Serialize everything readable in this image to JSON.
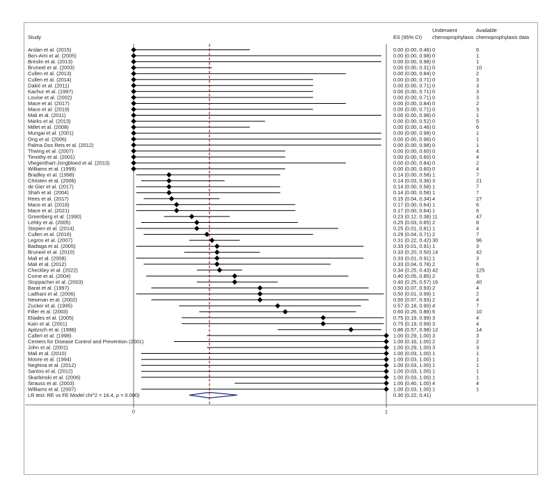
{
  "chart_data": {
    "type": "forest",
    "headers": {
      "study": "Study",
      "es": "ES (95% CI)",
      "underwent": "Underwent chemoprophylaxis",
      "underwent_lines": [
        "Underwent",
        "chemoprophylaxis"
      ],
      "available": "Available chemoprophylaxis data",
      "available_lines": [
        "Available",
        "chemoprophylaxis data"
      ]
    },
    "xlim": [
      0,
      1
    ],
    "x_ticks": [
      "0",
      "1"
    ],
    "pooled_line_x": 0.3,
    "colors": {
      "marker": "#000000",
      "pooled_diamond": "#1f2a80",
      "reference_line": "#8b0000"
    },
    "studies": [
      {
        "study": "Arslan et al. (2015)",
        "es": 0.0,
        "lo": 0.0,
        "hi": 0.46,
        "ci_text": "0.00 (0.00, 0.46)",
        "underwent": "0",
        "available": "6"
      },
      {
        "study": "Ben-Ami et al. (2005)",
        "es": 0.0,
        "lo": 0.0,
        "hi": 0.98,
        "ci_text": "0.00 (0.00, 0.98)",
        "underwent": "0",
        "available": "1"
      },
      {
        "study": "Breslin et al. (2013)",
        "es": 0.0,
        "lo": 0.0,
        "hi": 0.98,
        "ci_text": "0.00 (0.00, 0.98)",
        "underwent": "0",
        "available": "1"
      },
      {
        "study": "Bruneel et al. (2003)",
        "es": 0.0,
        "lo": 0.0,
        "hi": 0.31,
        "ci_text": "0.00 (0.00, 0.31)",
        "underwent": "0",
        "available": "10"
      },
      {
        "study": "Cullen et al. (2013)",
        "es": 0.0,
        "lo": 0.0,
        "hi": 0.84,
        "ci_text": "0.00 (0.00, 0.84)",
        "underwent": "0",
        "available": "2"
      },
      {
        "study": "Cullen et al. (2014)",
        "es": 0.0,
        "lo": 0.0,
        "hi": 0.71,
        "ci_text": "0.00 (0.00, 0.71)",
        "underwent": "0",
        "available": "3"
      },
      {
        "study": "Dakić et al. (2011)",
        "es": 0.0,
        "lo": 0.0,
        "hi": 0.71,
        "ci_text": "0.00 (0.00, 0.71)",
        "underwent": "0",
        "available": "3"
      },
      {
        "study": "Kachur et al. (1997)",
        "es": 0.0,
        "lo": 0.0,
        "hi": 0.71,
        "ci_text": "0.00 (0.00, 0.71)",
        "underwent": "0",
        "available": "3"
      },
      {
        "study": "Louise et al. (2002)",
        "es": 0.0,
        "lo": 0.0,
        "hi": 0.71,
        "ci_text": "0.00 (0.00, 0.71)",
        "underwent": "0",
        "available": "3"
      },
      {
        "study": "Mace et al. (2017)",
        "es": 0.0,
        "lo": 0.0,
        "hi": 0.84,
        "ci_text": "0.00 (0.00, 0.84)",
        "underwent": "0",
        "available": "2"
      },
      {
        "study": "Mace et al. (2019)",
        "es": 0.0,
        "lo": 0.0,
        "hi": 0.71,
        "ci_text": "0.00 (0.00, 0.71)",
        "underwent": "0",
        "available": "3"
      },
      {
        "study": "Mali et al. (2011)",
        "es": 0.0,
        "lo": 0.0,
        "hi": 0.98,
        "ci_text": "0.00 (0.00, 0.98)",
        "underwent": "0",
        "available": "1"
      },
      {
        "study": "Marks et al. (2013)",
        "es": 0.0,
        "lo": 0.0,
        "hi": 0.52,
        "ci_text": "0.00 (0.00, 0.52)",
        "underwent": "0",
        "available": "5"
      },
      {
        "study": "Millet et al. (2008)",
        "es": 0.0,
        "lo": 0.0,
        "hi": 0.46,
        "ci_text": "0.00 (0.00, 0.46)",
        "underwent": "0",
        "available": "6"
      },
      {
        "study": "Mungai et al. (2001)",
        "es": 0.0,
        "lo": 0.0,
        "hi": 0.98,
        "ci_text": "0.00 (0.00, 0.98)",
        "underwent": "0",
        "available": "1"
      },
      {
        "study": "Ong et al. (2006)",
        "es": 0.0,
        "lo": 0.0,
        "hi": 0.98,
        "ci_text": "0.00 (0.00, 0.98)",
        "underwent": "0",
        "available": "1"
      },
      {
        "study": "Palma Dos Reis et al. (2012)",
        "es": 0.0,
        "lo": 0.0,
        "hi": 0.98,
        "ci_text": "0.00 (0.00, 0.98)",
        "underwent": "0",
        "available": "1"
      },
      {
        "study": "Thwing et al. (2007)",
        "es": 0.0,
        "lo": 0.0,
        "hi": 0.6,
        "ci_text": "0.00 (0.00, 0.60)",
        "underwent": "0",
        "available": "4"
      },
      {
        "study": "Timothy et al. (2001)",
        "es": 0.0,
        "lo": 0.0,
        "hi": 0.6,
        "ci_text": "0.00 (0.00, 0.60)",
        "underwent": "0",
        "available": "4"
      },
      {
        "study": "Vliegenthart-Jongbloed et al. (2013)",
        "es": 0.0,
        "lo": 0.0,
        "hi": 0.84,
        "ci_text": "0.00 (0.00, 0.84)",
        "underwent": "0",
        "available": "2"
      },
      {
        "study": "Williams et al. (1999)",
        "es": 0.0,
        "lo": 0.0,
        "hi": 0.6,
        "ci_text": "0.00 (0.00, 0.60)",
        "underwent": "0",
        "available": "4"
      },
      {
        "study": "Bradley et al. (1998)",
        "es": 0.14,
        "lo": 0.01,
        "hi": 0.58,
        "ci_text": "0.14 (0.00, 0.58)",
        "underwent": "1",
        "available": "7"
      },
      {
        "study": "Christen et al. (2006)",
        "es": 0.14,
        "lo": 0.03,
        "hi": 0.36,
        "ci_text": "0.14 (0.03, 0.36)",
        "underwent": "3",
        "available": "21"
      },
      {
        "study": "de Gier et al. (2017)",
        "es": 0.14,
        "lo": 0.01,
        "hi": 0.58,
        "ci_text": "0.14 (0.00, 0.58)",
        "underwent": "1",
        "available": "7"
      },
      {
        "study": "Shah et al. (2004)",
        "es": 0.14,
        "lo": 0.01,
        "hi": 0.58,
        "ci_text": "0.14 (0.00, 0.58)",
        "underwent": "1",
        "available": "7"
      },
      {
        "study": "Rees et al. (2017)",
        "es": 0.15,
        "lo": 0.04,
        "hi": 0.34,
        "ci_text": "0.15 (0.04, 0.34)",
        "underwent": "4",
        "available": "27"
      },
      {
        "study": "Mace et al. (2018)",
        "es": 0.17,
        "lo": 0.01,
        "hi": 0.64,
        "ci_text": "0.17 (0.00, 0.64)",
        "underwent": "1",
        "available": "6"
      },
      {
        "study": "Mace et al. (2021)",
        "es": 0.17,
        "lo": 0.01,
        "hi": 0.64,
        "ci_text": "0.17 (0.00, 0.64)",
        "underwent": "1",
        "available": "6"
      },
      {
        "study": "Greenberg et al. (1990)",
        "es": 0.23,
        "lo": 0.12,
        "hi": 0.38,
        "ci_text": "0.23 (0.12, 0.38)",
        "underwent": "11",
        "available": "47"
      },
      {
        "study": "Lehky et al. (2005)",
        "es": 0.25,
        "lo": 0.03,
        "hi": 0.65,
        "ci_text": "0.25 (0.03, 0.65)",
        "underwent": "2",
        "available": "8"
      },
      {
        "study": "Stepien et al. (2014)",
        "es": 0.25,
        "lo": 0.01,
        "hi": 0.81,
        "ci_text": "0.25 (0.01, 0.81)",
        "underwent": "1",
        "available": "4"
      },
      {
        "study": "Cullen et al. (2016)",
        "es": 0.29,
        "lo": 0.04,
        "hi": 0.71,
        "ci_text": "0.29 (0.04, 0.71)",
        "underwent": "2",
        "available": "7"
      },
      {
        "study": "Legros et al. (2007)",
        "es": 0.31,
        "lo": 0.22,
        "hi": 0.42,
        "ci_text": "0.31 (0.22, 0.42)",
        "underwent": "30",
        "available": "96"
      },
      {
        "study": "Badiaga et al. (2005)",
        "es": 0.33,
        "lo": 0.01,
        "hi": 0.91,
        "ci_text": "0.33 (0.01, 0.91)",
        "underwent": "1",
        "available": "3"
      },
      {
        "study": "Bruneel et al. (2010)",
        "es": 0.33,
        "lo": 0.2,
        "hi": 0.5,
        "ci_text": "0.33 (0.20, 0.50)",
        "underwent": "14",
        "available": "42"
      },
      {
        "study": "Mali et al. (2008)",
        "es": 0.33,
        "lo": 0.01,
        "hi": 0.91,
        "ci_text": "0.33 (0.01, 0.91)",
        "underwent": "1",
        "available": "3"
      },
      {
        "study": "Mali et al. (2012)",
        "es": 0.33,
        "lo": 0.04,
        "hi": 0.78,
        "ci_text": "0.33 (0.04, 0.78)",
        "underwent": "2",
        "available": "6"
      },
      {
        "study": "Checkley et al. (2022)",
        "es": 0.34,
        "lo": 0.25,
        "hi": 0.43,
        "ci_text": "0.34 (0.25, 0.43)",
        "underwent": "42",
        "available": "125"
      },
      {
        "study": "Corne et al. (2004)",
        "es": 0.4,
        "lo": 0.05,
        "hi": 0.85,
        "ci_text": "0.40 (0.05, 0.85)",
        "underwent": "2",
        "available": "5"
      },
      {
        "study": "Stoppacher et al. (2003)",
        "es": 0.4,
        "lo": 0.25,
        "hi": 0.57,
        "ci_text": "0.40 (0.25, 0.57)",
        "underwent": "16",
        "available": "40"
      },
      {
        "study": "Barat et al. (1997)",
        "es": 0.5,
        "lo": 0.07,
        "hi": 0.93,
        "ci_text": "0.50 (0.07, 0.93)",
        "underwent": "2",
        "available": "4"
      },
      {
        "study": "Ladhani et al. (2006)",
        "es": 0.5,
        "lo": 0.01,
        "hi": 0.99,
        "ci_text": "0.50 (0.01, 0.99)",
        "underwent": "1",
        "available": "2"
      },
      {
        "study": "Newman et al. (2002)",
        "es": 0.5,
        "lo": 0.07,
        "hi": 0.93,
        "ci_text": "0.50 (0.07, 0.93)",
        "underwent": "2",
        "available": "4"
      },
      {
        "study": "Zucker et al. (1995)",
        "es": 0.57,
        "lo": 0.18,
        "hi": 0.9,
        "ci_text": "0.57 (0.18, 0.90)",
        "underwent": "4",
        "available": "7"
      },
      {
        "study": "Filler et al. (2003)",
        "es": 0.6,
        "lo": 0.26,
        "hi": 0.88,
        "ci_text": "0.60 (0.26, 0.88)",
        "underwent": "6",
        "available": "10"
      },
      {
        "study": "Eliades et al. (2005)",
        "es": 0.75,
        "lo": 0.19,
        "hi": 0.99,
        "ci_text": "0.75 (0.19, 0.99)",
        "underwent": "3",
        "available": "4"
      },
      {
        "study": "Kain et al. (2001)",
        "es": 0.75,
        "lo": 0.19,
        "hi": 0.99,
        "ci_text": "0.75 (0.19, 0.99)",
        "underwent": "3",
        "available": "4"
      },
      {
        "study": "Apitzsch et al. (1998)",
        "es": 0.86,
        "lo": 0.57,
        "hi": 0.98,
        "ci_text": "0.86 (0.57, 0.98)",
        "underwent": "12",
        "available": "14"
      },
      {
        "study": "Calleri et al. (1998)",
        "es": 1.0,
        "lo": 0.29,
        "hi": 1.0,
        "ci_text": "1.00 (0.29, 1.00)",
        "underwent": "3",
        "available": "3"
      },
      {
        "study": "Centers for Disease Control and Prevention (2001)",
        "es": 1.0,
        "lo": 0.16,
        "hi": 1.0,
        "ci_text": "1.00 (0.16, 1.00)",
        "underwent": "2",
        "available": "2"
      },
      {
        "study": "John et al. (2001)",
        "es": 1.0,
        "lo": 0.29,
        "hi": 1.0,
        "ci_text": "1.00 (0.29, 1.00)",
        "underwent": "3",
        "available": "3"
      },
      {
        "study": "Mali et al. (2010)",
        "es": 1.0,
        "lo": 0.03,
        "hi": 1.0,
        "ci_text": "1.00 (0.03, 1.00)",
        "underwent": "1",
        "available": "1"
      },
      {
        "study": "Moore et al. (1994)",
        "es": 1.0,
        "lo": 0.03,
        "hi": 1.0,
        "ci_text": "1.00 (0.03, 1.00)",
        "underwent": "1",
        "available": "1"
      },
      {
        "study": "Neghina et al. (2012)",
        "es": 1.0,
        "lo": 0.03,
        "hi": 1.0,
        "ci_text": "1.00 (0.03, 1.00)",
        "underwent": "1",
        "available": "1"
      },
      {
        "study": "Santos et al. (2012)",
        "es": 1.0,
        "lo": 0.03,
        "hi": 1.0,
        "ci_text": "1.00 (0.03, 1.00)",
        "underwent": "1",
        "available": "1"
      },
      {
        "study": "Skarbinski et al. (2006)",
        "es": 1.0,
        "lo": 0.03,
        "hi": 1.0,
        "ci_text": "1.00 (0.03, 1.00)",
        "underwent": "1",
        "available": "1"
      },
      {
        "study": "Strauss et al. (2003)",
        "es": 1.0,
        "lo": 0.4,
        "hi": 1.0,
        "ci_text": "1.00 (0.40, 1.00)",
        "underwent": "4",
        "available": "4"
      },
      {
        "study": "Williams et al. (2007)",
        "es": 1.0,
        "lo": 0.03,
        "hi": 1.0,
        "ci_text": "1.00 (0.03, 1.00)",
        "underwent": "1",
        "available": "1"
      }
    ],
    "pooled": {
      "label": "LR test: RE vs FE Model chi^2 = 16.4, p = 0.000)",
      "es": 0.3,
      "lo": 0.22,
      "hi": 0.41,
      "ci_text": "0.30 (0.22, 0.41)"
    }
  }
}
